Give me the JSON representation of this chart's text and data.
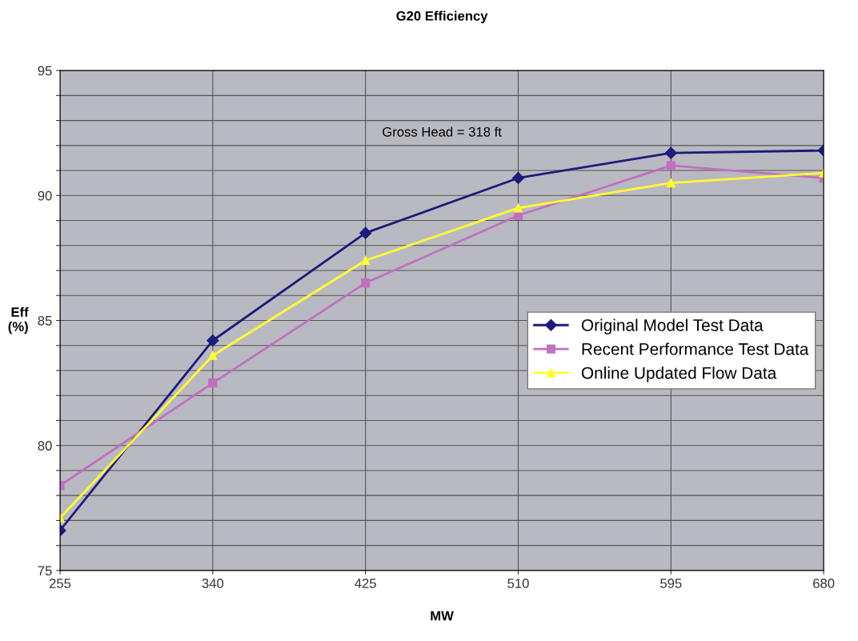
{
  "chart_data": {
    "type": "line",
    "title": "G20 Efficiency",
    "xlabel": "MW",
    "ylabel": "Eff\n(%)",
    "x": [
      255,
      340,
      425,
      510,
      595,
      680
    ],
    "xlim": [
      255,
      680
    ],
    "xticks": [
      255,
      340,
      425,
      510,
      595,
      680
    ],
    "ylim": [
      75,
      95
    ],
    "yticks": [
      75,
      {
        "value": 76,
        "label": null
      },
      {
        "value": 77,
        "label": null
      },
      {
        "value": 78,
        "label": null
      },
      {
        "value": 79,
        "label": null
      },
      80,
      {
        "value": 81,
        "label": null
      },
      {
        "value": 82,
        "label": null
      },
      {
        "value": 83,
        "label": null
      },
      {
        "value": 84,
        "label": null
      },
      85,
      {
        "value": 86,
        "label": null
      },
      {
        "value": 87,
        "label": null
      },
      {
        "value": 88,
        "label": null
      },
      {
        "value": 89,
        "label": null
      },
      90,
      {
        "value": 91,
        "label": null
      },
      {
        "value": 92,
        "label": null
      },
      {
        "value": 93,
        "label": null
      },
      {
        "value": 94,
        "label": null
      },
      95
    ],
    "grid": true,
    "legend": "right",
    "line_style": "solid",
    "annotations": [
      "Gross Head = 318 ft"
    ],
    "series": [
      {
        "name": "Original Model Test Data",
        "color": "#1c1c7a",
        "marker": "diamond",
        "values": [
          76.6,
          84.2,
          88.5,
          90.7,
          91.7,
          91.8
        ]
      },
      {
        "name": "Recent Performance Test Data",
        "color": "#c070c0",
        "marker": "square",
        "values": [
          78.4,
          82.5,
          86.5,
          89.2,
          91.2,
          90.7
        ]
      },
      {
        "name": "Online Updated Flow Data",
        "color": "#ffff30",
        "marker": "triangle",
        "values": [
          77.1,
          83.6,
          87.4,
          89.5,
          90.5,
          90.9
        ]
      }
    ]
  }
}
